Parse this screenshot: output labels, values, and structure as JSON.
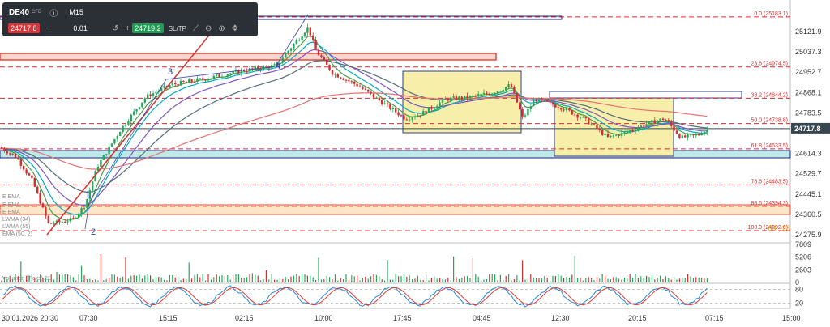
{
  "toolbar": {
    "symbol": "DE40",
    "symbol_type": "CFD",
    "timeframe": "M15",
    "sell_price": "24717.8",
    "quantity": "0.01",
    "buy_price": "24719.2",
    "sltp_label": "SL/TP",
    "minus": "−",
    "plus": "+"
  },
  "indicator_legends": [
    "E EMA",
    "E EMA",
    "E EMA",
    "LWMA (34)",
    "LWMA (55)",
    "EMA (50, 2)"
  ],
  "volume_label": "Volumen (Ticks) 21",
  "chart_data": [
    {
      "type": "candlestick",
      "price_axis_ticks": [
        "25121.9",
        "25037.3",
        "24952.7",
        "24868.1",
        "24783.5",
        "24614.3",
        "24529.7",
        "24445.1",
        "24360.5",
        "24275.9"
      ],
      "current_price": "24717.8",
      "time_labels": [
        "30.01.2026 20:30",
        "07:30",
        "15:15",
        "02:15",
        "10:00",
        "17:45",
        "04:45",
        "12:30",
        "20:15",
        "07:15",
        "15:00"
      ],
      "fibonacci": [
        {
          "label": "0.0 (25183.1)",
          "price": 25183.1
        },
        {
          "label": "23.6 (24974.5)",
          "price": 24974.5
        },
        {
          "label": "38.2 (24844.2)",
          "price": 24844.2
        },
        {
          "label": "50.0 (24738.8)",
          "price": 24738.8
        },
        {
          "label": "61.8 (24633.5)",
          "price": 24633.5
        },
        {
          "label": "78.6 (24483.5)",
          "price": 24483.5
        },
        {
          "label": "88.6 (24394.3)",
          "price": 24394.3
        },
        {
          "label": "100.0 (24292.6)",
          "price": 24292.6
        }
      ],
      "wave_labels": [
        "1",
        "2",
        "3",
        "4"
      ],
      "countdown_label": "03 : 23",
      "price_range": [
        24250,
        25200
      ]
    },
    {
      "type": "bar",
      "title": "Volumen (Ticks) 21",
      "y_ticks": [
        "7809",
        "5206",
        "2603",
        "0"
      ],
      "ylim": [
        0,
        7809
      ]
    },
    {
      "type": "line",
      "y_ticks": [
        "80",
        "20"
      ],
      "ylim": [
        0,
        100
      ]
    }
  ],
  "colors": {
    "bull": "#26a65b",
    "bear": "#d32f2f",
    "fib": "#d32f2f",
    "zone_fill": "#f7eeaa",
    "zone_border": "#2d3f8f",
    "cyan_fill": "#bfe9e6",
    "red_band": "#e84a3c",
    "orange_band": "#ff9800"
  }
}
